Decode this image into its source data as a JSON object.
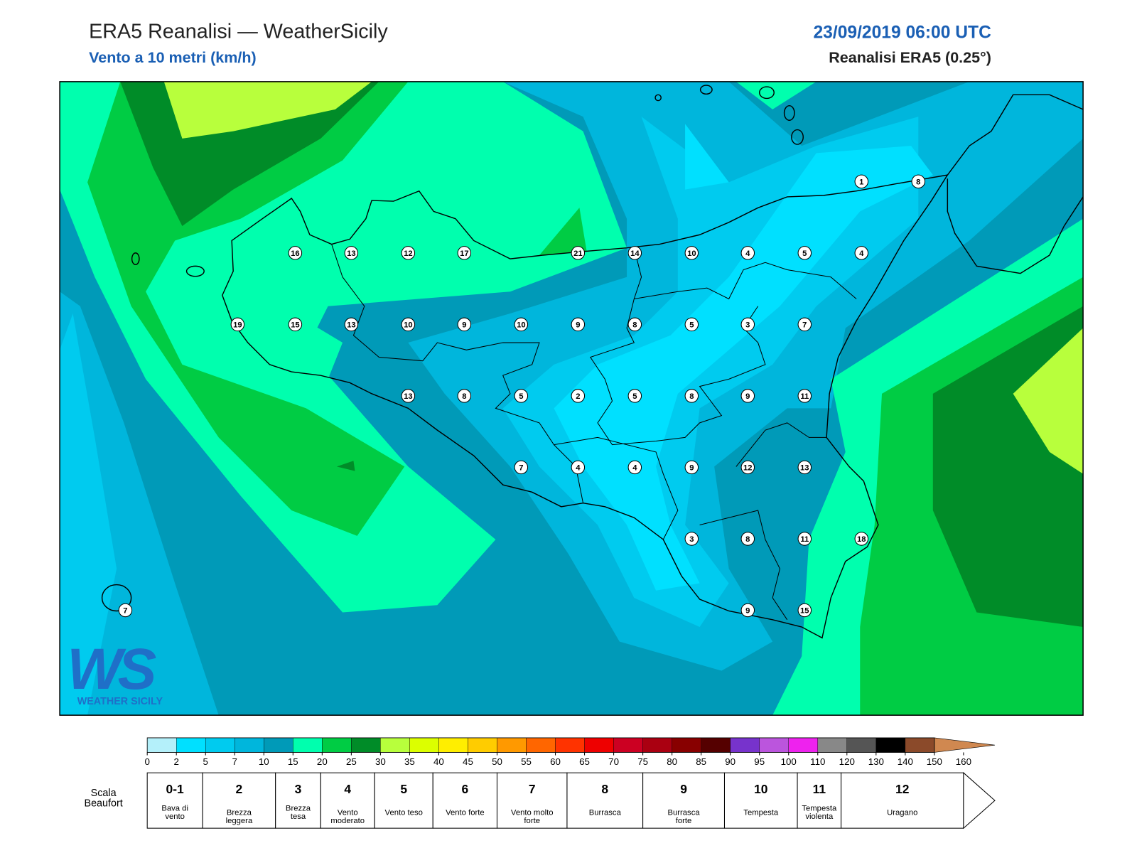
{
  "header": {
    "title": "ERA5 Reanalisi — WeatherSicily",
    "subtitle": "Vento a 10 metri (km/h)",
    "datetime": "23/09/2019 06:00 UTC",
    "source": "Reanalisi ERA5 (0.25°)"
  },
  "stations": [
    16,
    13,
    12,
    17,
    21,
    14,
    10,
    4,
    5,
    4,
    1,
    8,
    19,
    15,
    13,
    10,
    9,
    10,
    9,
    8,
    5,
    3,
    7,
    13,
    8,
    5,
    2,
    5,
    8,
    9,
    11,
    7,
    4,
    4,
    9,
    12,
    13,
    3,
    8,
    11,
    18,
    9,
    15,
    7
  ],
  "logo": {
    "mark": "WS",
    "name": "WEATHER SICILY"
  },
  "colorbar": {
    "ticks": [
      0,
      2,
      5,
      7,
      10,
      15,
      20,
      25,
      30,
      35,
      40,
      45,
      50,
      55,
      60,
      65,
      70,
      75,
      80,
      85,
      90,
      95,
      100,
      110,
      120,
      130,
      140,
      150,
      160
    ],
    "colors": [
      "#b4f0fa",
      "#00e0ff",
      "#00cbef",
      "#00b6dc",
      "#009ab8",
      "#00ffae",
      "#00cc44",
      "#008c28",
      "#b8ff3c",
      "#dcff00",
      "#ffee00",
      "#ffcc00",
      "#ff9900",
      "#ff6600",
      "#ff3300",
      "#ee0000",
      "#cc0022",
      "#aa0011",
      "#880000",
      "#550000",
      "#7733cc",
      "#bb55dd",
      "#ee22ee",
      "#888888",
      "#555555",
      "#000000",
      "#8b4a2a",
      "#d08850"
    ]
  },
  "beaufort": {
    "title": "Scala Beaufort",
    "levels": [
      {
        "number": "0-1",
        "label": "Bava di vento"
      },
      {
        "number": "2",
        "label": "Brezza leggera"
      },
      {
        "number": "3",
        "label": "Brezza tesa"
      },
      {
        "number": "4",
        "label": "Vento moderato"
      },
      {
        "number": "5",
        "label": "Vento teso"
      },
      {
        "number": "6",
        "label": "Vento forte"
      },
      {
        "number": "7",
        "label": "Vento molto forte"
      },
      {
        "number": "8",
        "label": "Burrasca"
      },
      {
        "number": "9",
        "label": "Burrasca forte"
      },
      {
        "number": "10",
        "label": "Tempesta"
      },
      {
        "number": "11",
        "label": "Tempesta violenta"
      },
      {
        "number": "12",
        "label": "Uragano"
      }
    ]
  }
}
